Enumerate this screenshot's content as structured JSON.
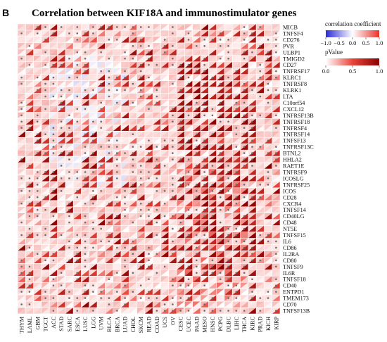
{
  "panel_label": "B",
  "chart_data": {
    "type": "heatmap",
    "title": "Correlation between KIF18A and immunostimulator genes",
    "genes": [
      "MICB",
      "TNFSF4",
      "CD276",
      "PVR",
      "ULBP1",
      "TMIGD2",
      "CD27",
      "TNFRSF17",
      "KLRC1",
      "TNFRSF8",
      "KLRK1",
      "LTA",
      "C10orf54",
      "CXCL12",
      "TNFRSF13B",
      "TNFRSF18",
      "TNFRSF4",
      "TNFRSF14",
      "TNFSF13",
      "TNFRSF13C",
      "BTNL2",
      "HHLA2",
      "RAET1E",
      "TNFRSF9",
      "ICOSLG",
      "TNFRSF25",
      "ICOS",
      "CD28",
      "CXCR4",
      "TNFSF14",
      "CD40LG",
      "CD48",
      "NT5E",
      "TNFSF15",
      "IL6",
      "CD86",
      "IL2RA",
      "CD80",
      "TNFSF9",
      "IL6R",
      "TNFSF18",
      "CD40",
      "ENTPD1",
      "TMEM173",
      "CD70",
      "TNFSF13B"
    ],
    "cancers": [
      "THYM",
      "LAML",
      "GBM",
      "TGCT",
      "ACC",
      "STAD",
      "SARC",
      "ESCA",
      "LUSC",
      "LGG",
      "UVM",
      "BLCA",
      "BRCA",
      "LUAD",
      "CHOL",
      "SKCM",
      "READ",
      "COAD",
      "UCS",
      "OV",
      "CESC",
      "UCEC",
      "PAAD",
      "MESO",
      "HNSC",
      "PCPG",
      "DLBC",
      "LIHC",
      "THCA",
      "KIRC",
      "PRAD",
      "KICH",
      "KIRP"
    ],
    "legend": {
      "correlation": {
        "title": "correlation coefficient",
        "ticks": [
          "−1.0",
          "−0.5",
          "0.0",
          "0.5",
          "1.0"
        ],
        "range": [
          -1,
          1
        ],
        "low_color": "#2b2bd6",
        "mid_color": "#ffffff",
        "high_color": "#e8332a"
      },
      "pvalue": {
        "title": "pValue",
        "ticks": [
          "0.0",
          "0.5",
          "1.0"
        ],
        "range": [
          0,
          1
        ],
        "low_color": "#ffffff",
        "high_color": "#8b0000"
      }
    },
    "encoding": "upper-left triangle of each cell colored by correlation coefficient; lower-right triangle colored by pValue; dot marks significance"
  }
}
